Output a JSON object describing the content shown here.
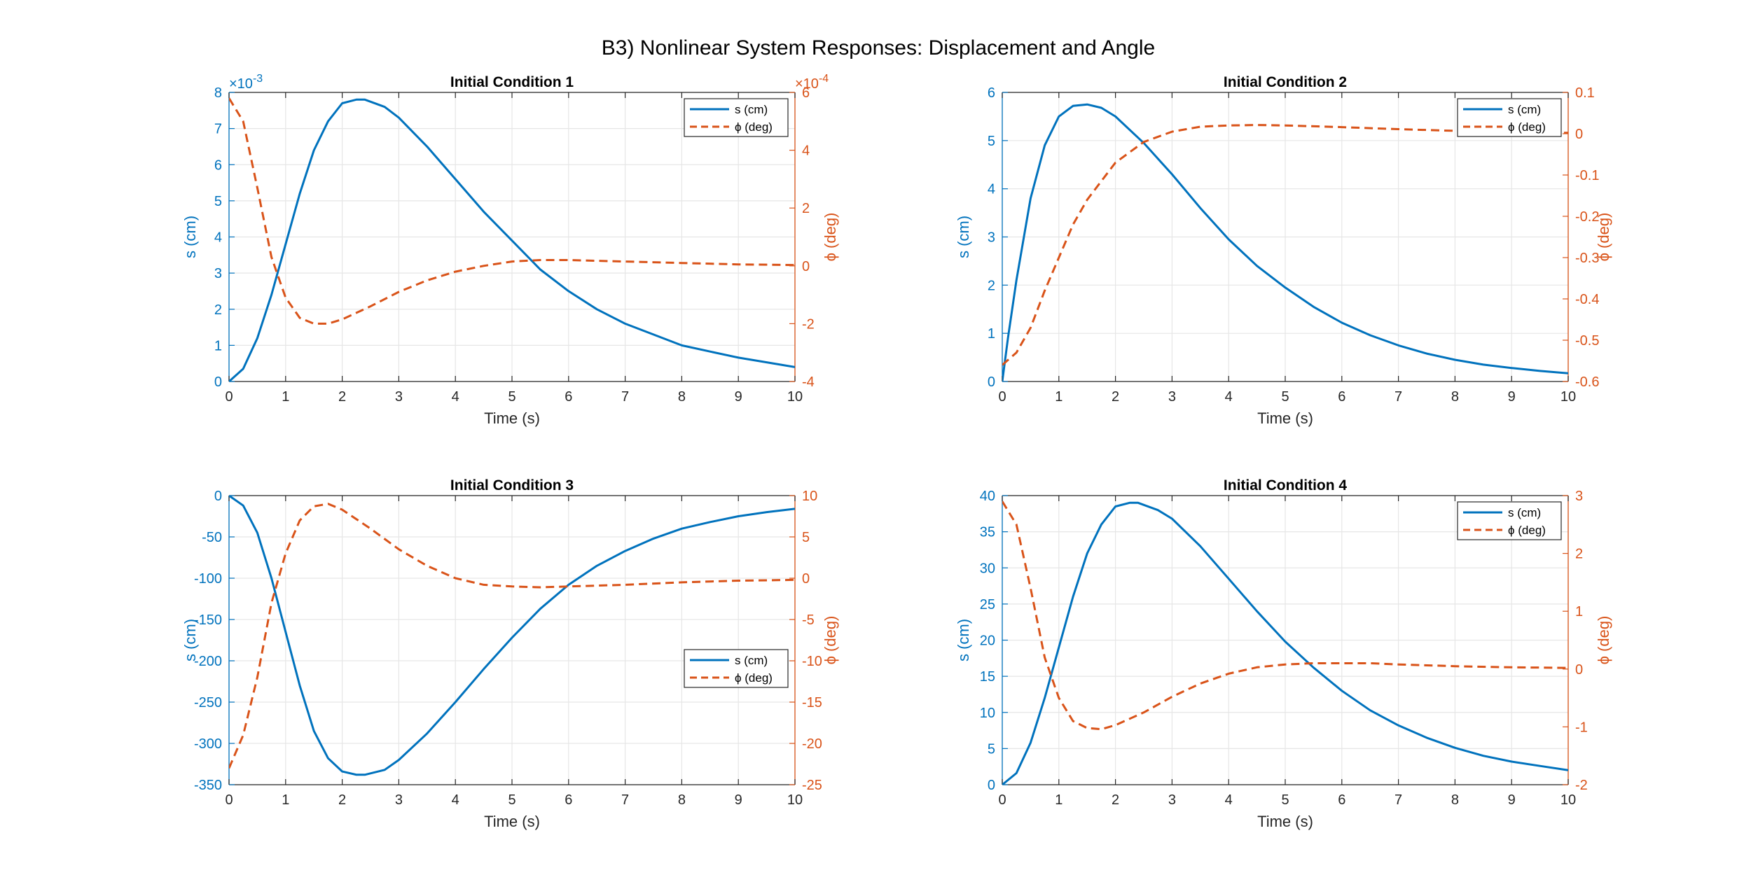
{
  "figure": {
    "title": "B3) Nonlinear System Responses: Displacement and Angle",
    "colors": {
      "s": "#0072BD",
      "phi": "#D95319",
      "axis_text": "#262626",
      "grid": "#E6E6E6"
    }
  },
  "chart_data": [
    {
      "type": "line",
      "title": "Initial Condition 1",
      "xlabel": "Time (s)",
      "ylabel_left": "s (cm)",
      "ylabel_right": "ϕ (deg)",
      "xlim": [
        0,
        10
      ],
      "xticks": [
        0,
        1,
        2,
        3,
        4,
        5,
        6,
        7,
        8,
        9,
        10
      ],
      "ylim_left": [
        0,
        0.008
      ],
      "yticks_left": [
        0,
        1,
        2,
        3,
        4,
        5,
        6,
        7,
        8
      ],
      "left_exponent": "×10",
      "left_exponent_power": "-3",
      "ylim_right": [
        -0.0004,
        0.0006
      ],
      "yticks_right": [
        -4,
        -2,
        0,
        2,
        4,
        6
      ],
      "right_exponent": "×10",
      "right_exponent_power": "-4",
      "legend_position": "top-right",
      "grid": true,
      "series": [
        {
          "name": "s (cm)",
          "axis": "left",
          "style": "solid",
          "x": [
            0,
            0.25,
            0.5,
            0.75,
            1,
            1.25,
            1.5,
            1.75,
            2,
            2.25,
            2.4,
            2.75,
            3,
            3.5,
            4,
            4.5,
            5,
            5.5,
            6,
            6.5,
            7,
            7.5,
            8,
            8.5,
            9,
            9.5,
            10
          ],
          "y": [
            0,
            0.00035,
            0.0012,
            0.0024,
            0.0038,
            0.0052,
            0.0064,
            0.0072,
            0.0077,
            0.0078,
            0.0078,
            0.0076,
            0.0073,
            0.0065,
            0.0056,
            0.0047,
            0.0039,
            0.0031,
            0.0025,
            0.002,
            0.0016,
            0.0013,
            0.001,
            0.00083,
            0.00066,
            0.00053,
            0.0004
          ]
        },
        {
          "name": "ϕ (deg)",
          "axis": "right",
          "style": "dashed",
          "x": [
            0,
            0.25,
            0.5,
            0.75,
            1,
            1.25,
            1.5,
            1.75,
            2,
            2.5,
            3,
            3.5,
            4,
            4.5,
            5,
            5.5,
            6,
            7,
            8,
            9,
            10
          ],
          "y": [
            0.00058,
            0.0005,
            0.00027,
            3e-05,
            -0.00011,
            -0.00018,
            -0.0002,
            -0.0002,
            -0.000185,
            -0.00014,
            -9e-05,
            -5e-05,
            -2e-05,
            0,
            1.5e-05,
            2e-05,
            2e-05,
            1.5e-05,
            1e-05,
            5e-06,
            3e-06
          ]
        }
      ]
    },
    {
      "type": "line",
      "title": "Initial Condition 2",
      "xlabel": "Time (s)",
      "ylabel_left": "s (cm)",
      "ylabel_right": "ϕ (deg)",
      "xlim": [
        0,
        10
      ],
      "xticks": [
        0,
        1,
        2,
        3,
        4,
        5,
        6,
        7,
        8,
        9,
        10
      ],
      "ylim_left": [
        0,
        6
      ],
      "yticks_left": [
        0,
        1,
        2,
        3,
        4,
        5,
        6
      ],
      "ylim_right": [
        -0.6,
        0.1
      ],
      "yticks_right": [
        -0.6,
        -0.5,
        -0.4,
        -0.3,
        -0.2,
        -0.1,
        0,
        0.1
      ],
      "legend_position": "top-right",
      "grid": true,
      "series": [
        {
          "name": "s (cm)",
          "axis": "left",
          "style": "solid",
          "x": [
            0,
            0.1,
            0.25,
            0.5,
            0.75,
            1,
            1.25,
            1.5,
            1.75,
            2,
            2.5,
            3,
            3.5,
            4,
            4.5,
            5,
            5.5,
            6,
            6.5,
            7,
            7.5,
            8,
            8.5,
            9,
            9.5,
            10
          ],
          "y": [
            0,
            0.9,
            2.1,
            3.8,
            4.9,
            5.5,
            5.72,
            5.75,
            5.68,
            5.5,
            4.95,
            4.3,
            3.6,
            2.95,
            2.4,
            1.95,
            1.55,
            1.22,
            0.96,
            0.75,
            0.58,
            0.45,
            0.35,
            0.28,
            0.22,
            0.17
          ]
        },
        {
          "name": "ϕ (deg)",
          "axis": "right",
          "style": "dashed",
          "x": [
            0,
            0.25,
            0.5,
            0.75,
            1,
            1.25,
            1.5,
            2,
            2.5,
            3,
            3.5,
            4,
            4.5,
            5,
            6,
            7,
            8,
            9,
            10
          ],
          "y": [
            -0.56,
            -0.53,
            -0.47,
            -0.38,
            -0.3,
            -0.22,
            -0.16,
            -0.07,
            -0.02,
            0.005,
            0.017,
            0.02,
            0.021,
            0.02,
            0.016,
            0.011,
            0.007,
            0.004,
            0.002
          ]
        }
      ]
    },
    {
      "type": "line",
      "title": "Initial Condition 3",
      "xlabel": "Time (s)",
      "ylabel_left": "s (cm)",
      "ylabel_right": "ϕ (deg)",
      "xlim": [
        0,
        10
      ],
      "xticks": [
        0,
        1,
        2,
        3,
        4,
        5,
        6,
        7,
        8,
        9,
        10
      ],
      "ylim_left": [
        -350,
        0
      ],
      "yticks_left": [
        -350,
        -300,
        -250,
        -200,
        -150,
        -100,
        -50,
        0
      ],
      "ylim_right": [
        -25,
        10
      ],
      "yticks_right": [
        -25,
        -20,
        -15,
        -10,
        -5,
        0,
        5,
        10
      ],
      "legend_position": "middle-right",
      "grid": true,
      "series": [
        {
          "name": "s (cm)",
          "axis": "left",
          "style": "solid",
          "x": [
            0,
            0.25,
            0.5,
            0.75,
            1,
            1.25,
            1.5,
            1.75,
            2,
            2.25,
            2.4,
            2.75,
            3,
            3.5,
            4,
            4.5,
            5,
            5.5,
            6,
            6.5,
            7,
            7.5,
            8,
            8.5,
            9,
            9.5,
            10
          ],
          "y": [
            0,
            -12,
            -45,
            -100,
            -165,
            -230,
            -285,
            -318,
            -334,
            -338,
            -338,
            -332,
            -320,
            -288,
            -250,
            -210,
            -172,
            -137,
            -108,
            -85,
            -67,
            -52,
            -40,
            -32,
            -25,
            -20,
            -16
          ]
        },
        {
          "name": "ϕ (deg)",
          "axis": "right",
          "style": "dashed",
          "x": [
            0,
            0.25,
            0.5,
            0.75,
            1,
            1.25,
            1.5,
            1.75,
            2,
            2.5,
            3,
            3.5,
            4,
            4.5,
            5,
            5.5,
            6,
            7,
            8,
            9,
            10
          ],
          "y": [
            -23,
            -19,
            -12,
            -3,
            3,
            7,
            8.7,
            9,
            8.3,
            6,
            3.5,
            1.5,
            0,
            -0.8,
            -1,
            -1.1,
            -1,
            -0.8,
            -0.5,
            -0.3,
            -0.2
          ]
        }
      ]
    },
    {
      "type": "line",
      "title": "Initial Condition 4",
      "xlabel": "Time (s)",
      "ylabel_left": "s (cm)",
      "ylabel_right": "ϕ (deg)",
      "xlim": [
        0,
        10
      ],
      "xticks": [
        0,
        1,
        2,
        3,
        4,
        5,
        6,
        7,
        8,
        9,
        10
      ],
      "ylim_left": [
        0,
        40
      ],
      "yticks_left": [
        0,
        5,
        10,
        15,
        20,
        25,
        30,
        35,
        40
      ],
      "ylim_right": [
        -2,
        3
      ],
      "yticks_right": [
        -2,
        -1,
        0,
        1,
        2,
        3
      ],
      "legend_position": "top-right",
      "grid": true,
      "series": [
        {
          "name": "s (cm)",
          "axis": "left",
          "style": "solid",
          "x": [
            0,
            0.25,
            0.5,
            0.75,
            1,
            1.25,
            1.5,
            1.75,
            2,
            2.25,
            2.4,
            2.75,
            3,
            3.5,
            4,
            4.5,
            5,
            5.5,
            6,
            6.5,
            7,
            7.5,
            8,
            8.5,
            9,
            9.5,
            10
          ],
          "y": [
            0,
            1.6,
            5.8,
            12,
            19,
            26,
            32,
            36,
            38.5,
            39,
            39,
            38,
            36.8,
            33,
            28.5,
            24,
            19.8,
            16.2,
            13,
            10.3,
            8.2,
            6.5,
            5.1,
            4,
            3.2,
            2.6,
            2
          ]
        },
        {
          "name": "ϕ (deg)",
          "axis": "right",
          "style": "dashed",
          "x": [
            0,
            0.25,
            0.5,
            0.75,
            1,
            1.25,
            1.5,
            1.75,
            2,
            2.5,
            3,
            3.5,
            4,
            4.5,
            5,
            5.5,
            6,
            6.5,
            7,
            8,
            9,
            10
          ],
          "y": [
            2.9,
            2.5,
            1.4,
            0.2,
            -0.5,
            -0.9,
            -1.02,
            -1.04,
            -0.97,
            -0.75,
            -0.48,
            -0.25,
            -0.08,
            0.03,
            0.08,
            0.1,
            0.1,
            0.1,
            0.08,
            0.05,
            0.03,
            0.02
          ]
        }
      ]
    }
  ]
}
